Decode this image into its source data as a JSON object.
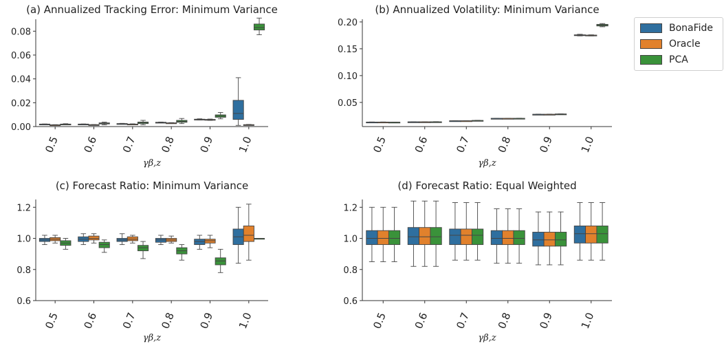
{
  "colors": {
    "BonaFide": "#2f6f9f",
    "Oracle": "#e1812c",
    "PCA": "#3a923a"
  },
  "legend": {
    "items": [
      "BonaFide",
      "Oracle",
      "PCA"
    ],
    "placement": "top-right"
  },
  "chart_data": [
    {
      "type": "boxplot",
      "title": "(a) Annualized Tracking Error: Minimum Variance",
      "xlabel": "γβ,z",
      "categories": [
        "0.5",
        "0.6",
        "0.7",
        "0.8",
        "0.9",
        "1.0"
      ],
      "ylim": [
        0,
        0.09
      ],
      "yticks": [
        "0.00",
        "0.02",
        "0.04",
        "0.06",
        "0.08"
      ],
      "series": [
        {
          "name": "BonaFide",
          "boxes": [
            [
              0.0018,
              0.0019,
              0.002,
              0.0021,
              0.0022
            ],
            [
              0.0018,
              0.0019,
              0.002,
              0.0021,
              0.0022
            ],
            [
              0.0022,
              0.0023,
              0.0024,
              0.0025,
              0.0027
            ],
            [
              0.0033,
              0.0034,
              0.0035,
              0.0036,
              0.0038
            ],
            [
              0.0055,
              0.0058,
              0.006,
              0.0062,
              0.0065
            ],
            [
              0.001,
              0.006,
              0.011,
              0.022,
              0.041
            ]
          ]
        },
        {
          "name": "Oracle",
          "boxes": [
            [
              0.0012,
              0.0013,
              0.0014,
              0.0015,
              0.0016
            ],
            [
              0.0013,
              0.0014,
              0.0015,
              0.0016,
              0.0017
            ],
            [
              0.0018,
              0.0019,
              0.002,
              0.0021,
              0.0023
            ],
            [
              0.0028,
              0.0029,
              0.003,
              0.0031,
              0.0033
            ],
            [
              0.0052,
              0.0055,
              0.0058,
              0.006,
              0.0063
            ],
            [
              0.0012,
              0.0014,
              0.0015,
              0.0016,
              0.0018
            ]
          ]
        },
        {
          "name": "PCA",
          "boxes": [
            [
              0.0015,
              0.0017,
              0.0019,
              0.0021,
              0.0024
            ],
            [
              0.0015,
              0.0022,
              0.0027,
              0.0031,
              0.0037
            ],
            [
              0.0015,
              0.0025,
              0.0033,
              0.0038,
              0.0052
            ],
            [
              0.0025,
              0.0036,
              0.0043,
              0.0052,
              0.0068
            ],
            [
              0.0065,
              0.0078,
              0.0088,
              0.0098,
              0.0118
            ],
            [
              0.077,
              0.081,
              0.083,
              0.086,
              0.091
            ]
          ]
        }
      ]
    },
    {
      "type": "boxplot",
      "title": "(b) Annualized Volatility: Minimum Variance",
      "xlabel": "γβ,z",
      "categories": [
        "0.5",
        "0.6",
        "0.7",
        "0.8",
        "0.9",
        "1.0"
      ],
      "ylim": [
        0.005,
        0.205
      ],
      "yticks": [
        "0.05",
        "0.10",
        "0.15",
        "0.20"
      ],
      "series": [
        {
          "name": "BonaFide",
          "boxes": [
            [
              0.013,
              0.0132,
              0.0133,
              0.0134,
              0.0136
            ],
            [
              0.0135,
              0.0136,
              0.0137,
              0.0138,
              0.014
            ],
            [
              0.0155,
              0.0156,
              0.0157,
              0.0158,
              0.016
            ],
            [
              0.02,
              0.0201,
              0.0202,
              0.0203,
              0.0205
            ],
            [
              0.0275,
              0.0277,
              0.0278,
              0.0279,
              0.0282
            ],
            [
              0.174,
              0.175,
              0.1755,
              0.176,
              0.177
            ]
          ]
        },
        {
          "name": "Oracle",
          "boxes": [
            [
              0.013,
              0.0132,
              0.0133,
              0.0134,
              0.0136
            ],
            [
              0.0135,
              0.0136,
              0.0137,
              0.0138,
              0.014
            ],
            [
              0.0155,
              0.0156,
              0.0157,
              0.0158,
              0.016
            ],
            [
              0.02,
              0.0201,
              0.0202,
              0.0203,
              0.0205
            ],
            [
              0.0275,
              0.0277,
              0.0278,
              0.0279,
              0.0282
            ],
            [
              0.174,
              0.1745,
              0.175,
              0.1755,
              0.176
            ]
          ]
        },
        {
          "name": "PCA",
          "boxes": [
            [
              0.0128,
              0.013,
              0.0131,
              0.0132,
              0.0134
            ],
            [
              0.0133,
              0.0135,
              0.0137,
              0.0139,
              0.0142
            ],
            [
              0.0158,
              0.016,
              0.0162,
              0.0164,
              0.0167
            ],
            [
              0.0198,
              0.02,
              0.0202,
              0.0204,
              0.0206
            ],
            [
              0.0278,
              0.028,
              0.0282,
              0.0285,
              0.0288
            ],
            [
              0.191,
              0.1925,
              0.194,
              0.1955,
              0.197
            ]
          ]
        }
      ]
    },
    {
      "type": "boxplot",
      "title": "(c) Forecast Ratio: Minimum Variance",
      "xlabel": "γβ,z",
      "categories": [
        "0.5",
        "0.6",
        "0.7",
        "0.8",
        "0.9",
        "1.0"
      ],
      "ylim": [
        0.6,
        1.25
      ],
      "yticks": [
        "0.6",
        "0.8",
        "1.0",
        "1.2"
      ],
      "series": [
        {
          "name": "BonaFide",
          "boxes": [
            [
              0.96,
              0.98,
              0.99,
              1.0,
              1.02
            ],
            [
              0.96,
              0.98,
              0.995,
              1.01,
              1.03
            ],
            [
              0.96,
              0.98,
              0.99,
              1.0,
              1.03
            ],
            [
              0.96,
              0.975,
              0.99,
              1.0,
              1.02
            ],
            [
              0.93,
              0.96,
              0.98,
              0.995,
              1.02
            ],
            [
              0.84,
              0.96,
              1.01,
              1.06,
              1.2
            ]
          ]
        },
        {
          "name": "Oracle",
          "boxes": [
            [
              0.97,
              0.985,
              0.995,
              1.005,
              1.02
            ],
            [
              0.97,
              0.99,
              1.0,
              1.015,
              1.03
            ],
            [
              0.97,
              0.985,
              0.995,
              1.01,
              1.02
            ],
            [
              0.97,
              0.98,
              0.99,
              1.0,
              1.015
            ],
            [
              0.94,
              0.97,
              0.985,
              0.995,
              1.02
            ],
            [
              0.86,
              0.98,
              1.02,
              1.08,
              1.22
            ]
          ]
        },
        {
          "name": "PCA",
          "boxes": [
            [
              0.93,
              0.955,
              0.97,
              0.985,
              1.0
            ],
            [
              0.91,
              0.94,
              0.96,
              0.975,
              0.99
            ],
            [
              0.87,
              0.92,
              0.94,
              0.955,
              0.98
            ],
            [
              0.86,
              0.9,
              0.92,
              0.94,
              0.96
            ],
            [
              0.78,
              0.83,
              0.855,
              0.875,
              0.93
            ],
            [
              1.0,
              1.0,
              1.0,
              1.0,
              1.0
            ]
          ]
        }
      ]
    },
    {
      "type": "boxplot",
      "title": "(d) Forecast Ratio: Equal Weighted",
      "xlabel": "γβ,z",
      "categories": [
        "0.5",
        "0.6",
        "0.7",
        "0.8",
        "0.9",
        "1.0"
      ],
      "ylim": [
        0.6,
        1.25
      ],
      "yticks": [
        "0.6",
        "0.8",
        "1.0",
        "1.2"
      ],
      "series": [
        {
          "name": "BonaFide",
          "boxes": [
            [
              0.85,
              0.96,
              1.0,
              1.05,
              1.2
            ],
            [
              0.82,
              0.96,
              1.01,
              1.07,
              1.24
            ],
            [
              0.86,
              0.96,
              1.02,
              1.06,
              1.23
            ],
            [
              0.84,
              0.96,
              1.0,
              1.05,
              1.19
            ],
            [
              0.83,
              0.95,
              0.99,
              1.04,
              1.17
            ],
            [
              0.86,
              0.97,
              1.03,
              1.08,
              1.23
            ]
          ]
        },
        {
          "name": "Oracle",
          "boxes": [
            [
              0.85,
              0.96,
              1.0,
              1.05,
              1.2
            ],
            [
              0.82,
              0.96,
              1.01,
              1.07,
              1.24
            ],
            [
              0.86,
              0.96,
              1.02,
              1.06,
              1.23
            ],
            [
              0.84,
              0.96,
              1.0,
              1.05,
              1.19
            ],
            [
              0.83,
              0.95,
              0.99,
              1.04,
              1.17
            ],
            [
              0.86,
              0.97,
              1.03,
              1.08,
              1.23
            ]
          ]
        },
        {
          "name": "PCA",
          "boxes": [
            [
              0.85,
              0.96,
              1.0,
              1.05,
              1.2
            ],
            [
              0.82,
              0.96,
              1.01,
              1.07,
              1.24
            ],
            [
              0.86,
              0.96,
              1.02,
              1.06,
              1.23
            ],
            [
              0.84,
              0.96,
              1.0,
              1.05,
              1.19
            ],
            [
              0.83,
              0.95,
              0.99,
              1.04,
              1.17
            ],
            [
              0.86,
              0.97,
              1.03,
              1.08,
              1.23
            ]
          ]
        }
      ]
    }
  ]
}
